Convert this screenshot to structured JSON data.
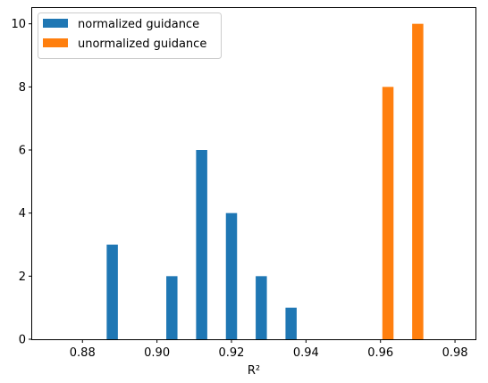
{
  "chart_data": {
    "type": "bar",
    "title": "",
    "xlabel": "R²",
    "ylabel": "",
    "xlim": [
      0.8665,
      0.9855
    ],
    "ylim": [
      0,
      10.5
    ],
    "xticks": [
      0.88,
      0.9,
      0.92,
      0.94,
      0.96,
      0.98
    ],
    "xtick_labels": [
      "0.88",
      "0.90",
      "0.92",
      "0.94",
      "0.96",
      "0.98"
    ],
    "yticks": [
      0,
      2,
      4,
      6,
      8,
      10
    ],
    "ytick_labels": [
      "0",
      "2",
      "4",
      "6",
      "8",
      "10"
    ],
    "grid": false,
    "legend_position": "top-left",
    "series": [
      {
        "name": "normalized guidance",
        "color": "#1f77b4",
        "bars": [
          {
            "x0": 0.8865,
            "x1": 0.8895,
            "value": 3
          },
          {
            "x0": 0.9025,
            "x1": 0.9055,
            "value": 2
          },
          {
            "x0": 0.9105,
            "x1": 0.9135,
            "value": 6
          },
          {
            "x0": 0.9185,
            "x1": 0.9215,
            "value": 4
          },
          {
            "x0": 0.9265,
            "x1": 0.9295,
            "value": 2
          },
          {
            "x0": 0.9345,
            "x1": 0.9375,
            "value": 1
          }
        ]
      },
      {
        "name": "unormalized guidance",
        "color": "#ff7f0e",
        "bars": [
          {
            "x0": 0.9605,
            "x1": 0.9635,
            "value": 8
          },
          {
            "x0": 0.9685,
            "x1": 0.9715,
            "value": 10
          }
        ]
      }
    ]
  }
}
